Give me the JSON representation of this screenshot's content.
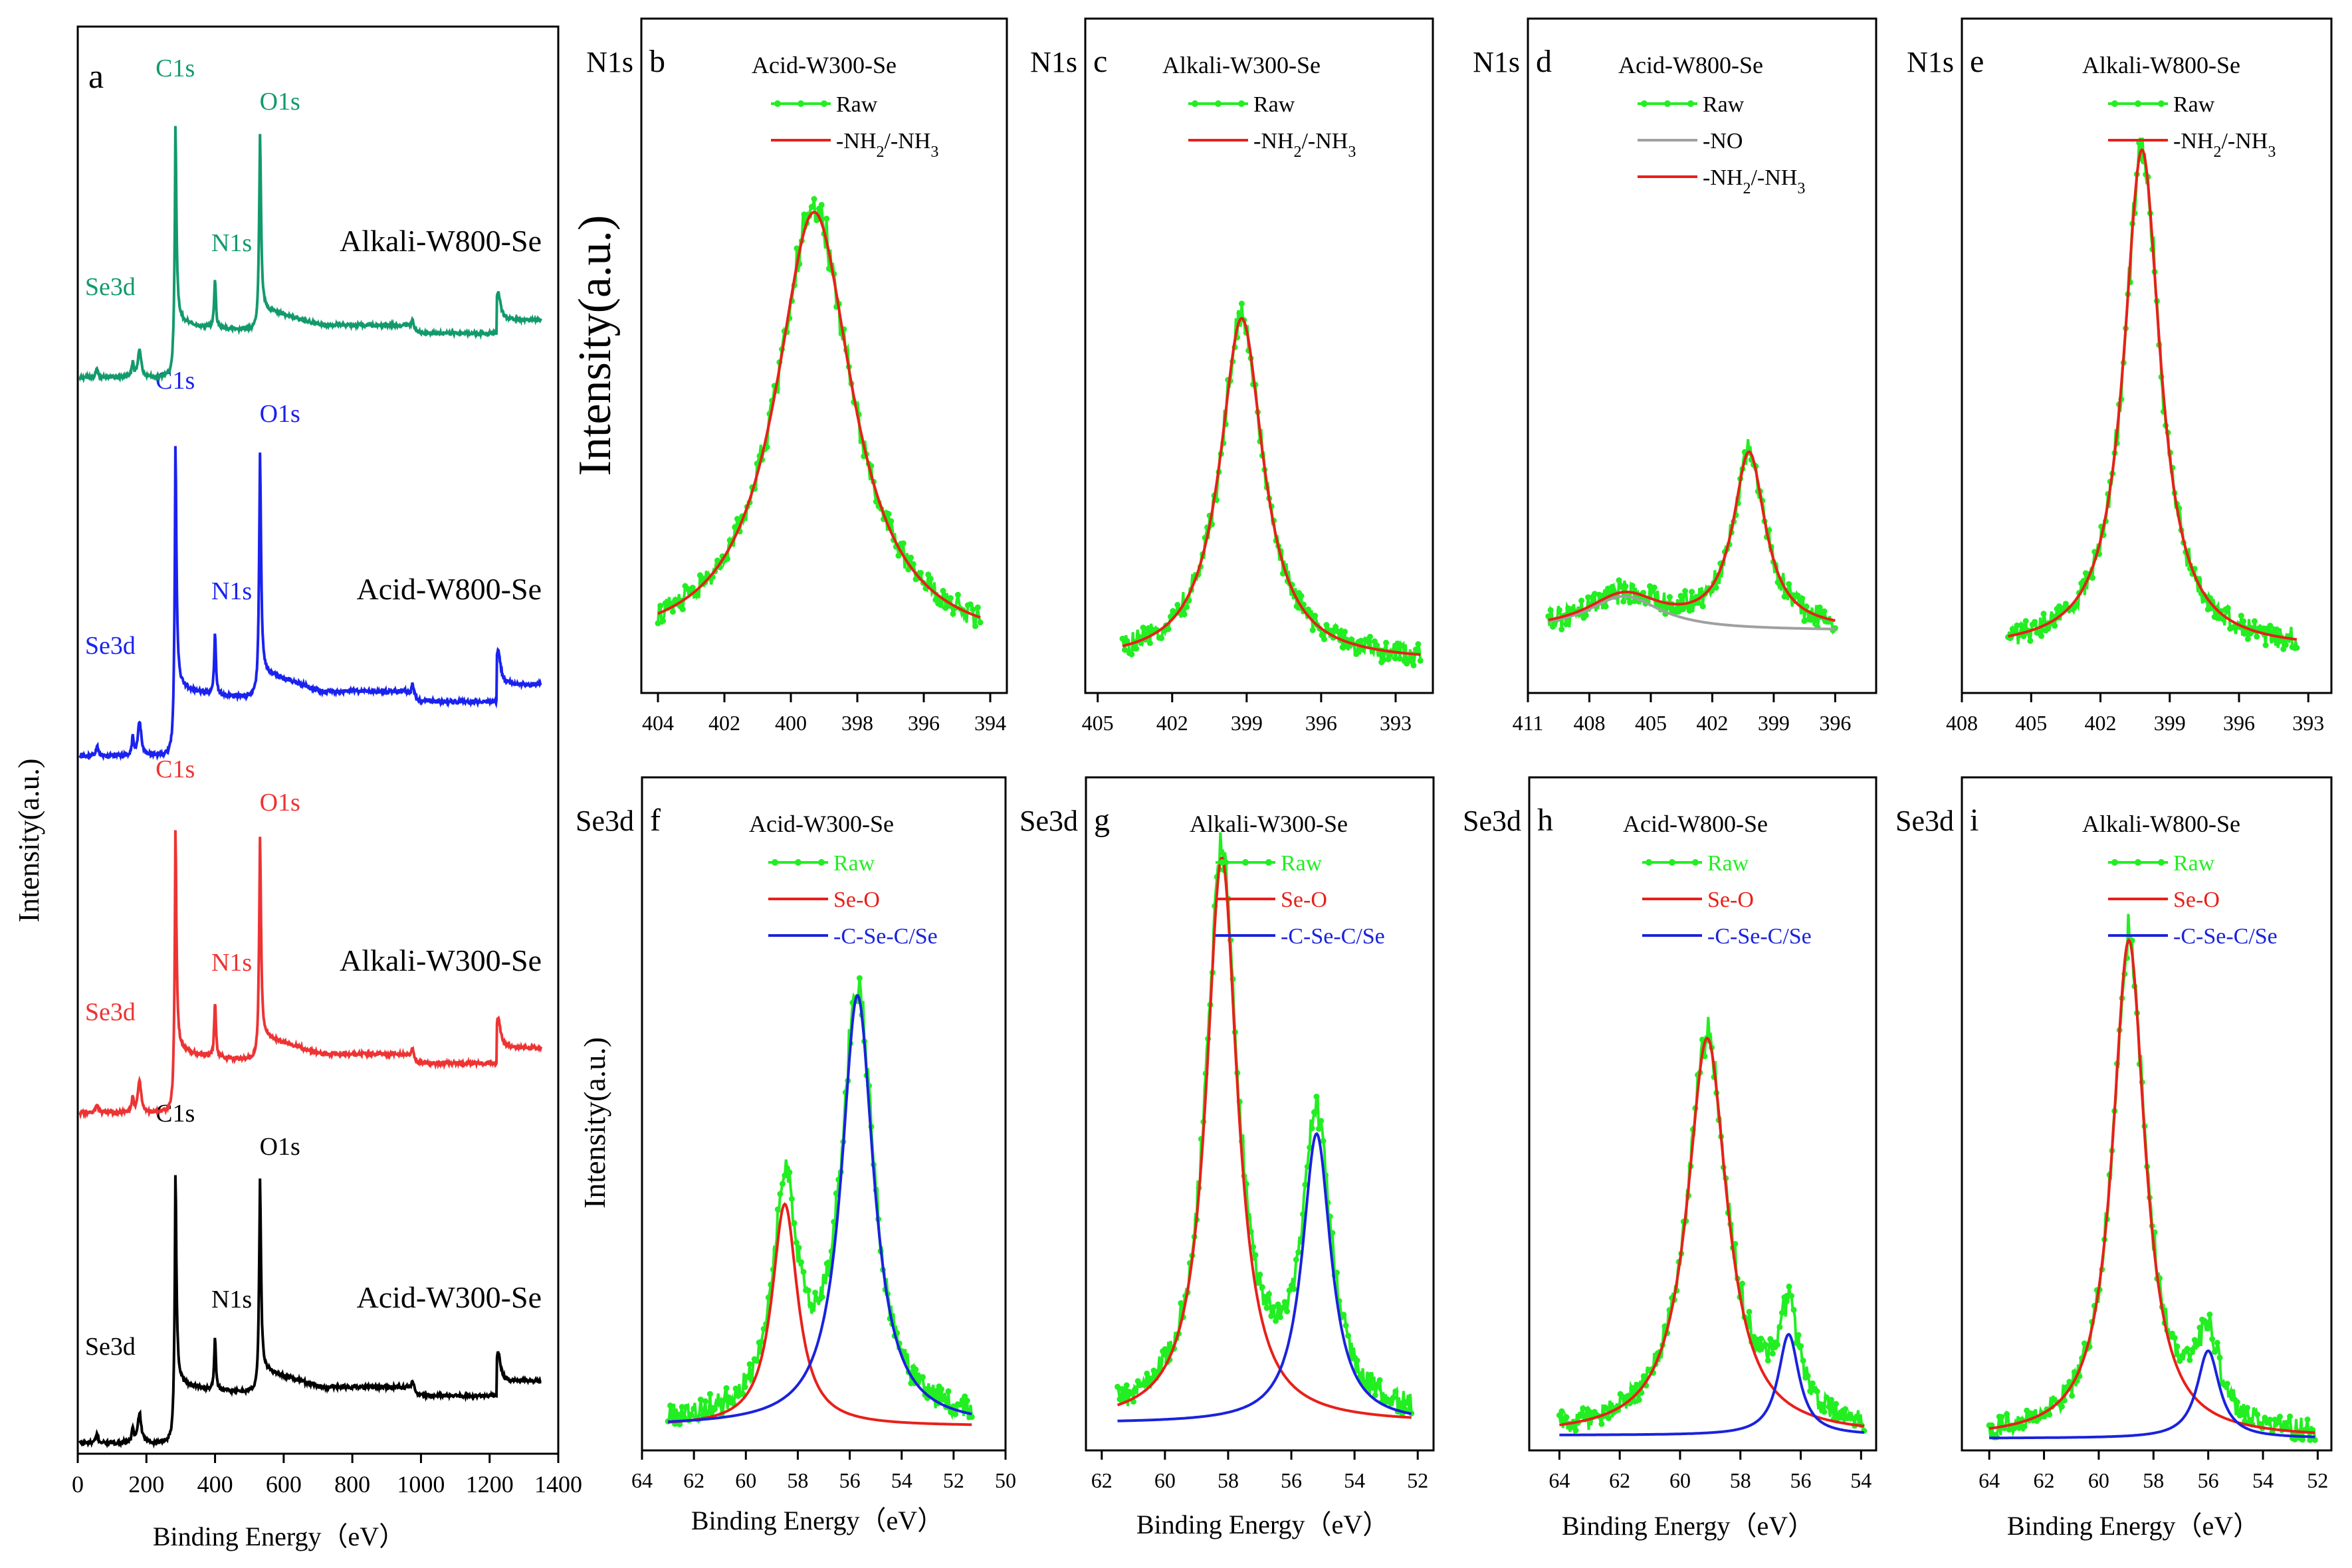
{
  "figure": {
    "y_axis_label_a": "Intensity(a.u.)",
    "y_axis_label_n1s": "Intensity(a.u.)",
    "y_axis_label_se3d": "Intensity(a.u.)",
    "x_axis_label": "Binding Energy（eV）"
  },
  "colors": {
    "raw": "#22ee22",
    "fit_red": "#e8201a",
    "fit_blue": "#1a22dd",
    "fit_gray": "#a0a0a0",
    "survey_green": "#129a6b",
    "survey_blue": "#1a22ee",
    "survey_red": "#ee3333",
    "survey_black": "#000000"
  },
  "chart_data": [
    {
      "id": "a",
      "panel_label": "a",
      "type": "line",
      "xlabel": "Binding Energy（eV）",
      "ylabel": "Intensity(a.u.)",
      "xlim": [
        0,
        1400
      ],
      "xticks": [
        "0",
        "200",
        "400",
        "600",
        "800",
        "1000",
        "1200",
        "1400"
      ],
      "series": [
        {
          "name": "Acid-W300-Se",
          "color": "#000000",
          "offset": 0,
          "peaks": [
            {
              "label": "Se3d",
              "x": 56
            },
            {
              "label": "C1s",
              "x": 284
            },
            {
              "label": "N1s",
              "x": 400
            },
            {
              "label": "O1s",
              "x": 531
            }
          ]
        },
        {
          "name": "Alkali-W300-Se",
          "color": "#ee3333",
          "offset": 1,
          "peaks": [
            {
              "label": "Se3d",
              "x": 56
            },
            {
              "label": "C1s",
              "x": 284
            },
            {
              "label": "N1s",
              "x": 400
            },
            {
              "label": "O1s",
              "x": 531
            }
          ]
        },
        {
          "name": "Acid-W800-Se",
          "color": "#1a22ee",
          "offset": 2,
          "peaks": [
            {
              "label": "Se3d",
              "x": 56
            },
            {
              "label": "C1s",
              "x": 284
            },
            {
              "label": "N1s",
              "x": 400
            },
            {
              "label": "O1s",
              "x": 531
            }
          ]
        },
        {
          "name": "Alkali-W800-Se",
          "color": "#129a6b",
          "offset": 3,
          "peaks": [
            {
              "label": "Se3d",
              "x": 56
            },
            {
              "label": "C1s",
              "x": 284
            },
            {
              "label": "N1s",
              "x": 400
            },
            {
              "label": "O1s",
              "x": 531
            }
          ]
        }
      ]
    },
    {
      "id": "b",
      "panel_label": "b",
      "element": "N1s",
      "sample": "Acid-W300-Se",
      "type": "line",
      "xlim": [
        404.5,
        393.5
      ],
      "xticks": [
        "404",
        "402",
        "400",
        "398",
        "396",
        "394"
      ],
      "xtick_values": [
        404,
        402,
        400,
        398,
        396,
        394
      ],
      "raw_range": [
        404,
        394.3
      ],
      "ylim": [
        0,
        1.08
      ],
      "baseline": 0.07,
      "components": [
        {
          "name": "-NH2/-NH3",
          "center": 399.3,
          "height": 0.7,
          "width": 1.4,
          "color": "#e8201a"
        }
      ],
      "legend": [
        {
          "label": "Raw",
          "type": "raw"
        },
        {
          "label": "-NH",
          "sub": "2",
          "mid": "/-NH",
          "sub2": "3",
          "type": "red"
        }
      ]
    },
    {
      "id": "c",
      "panel_label": "c",
      "element": "N1s",
      "sample": "Alkali-W300-Se",
      "type": "line",
      "xlim": [
        405.5,
        391.5
      ],
      "xticks": [
        "405",
        "402",
        "399",
        "396",
        "393"
      ],
      "xtick_values": [
        405,
        402,
        399,
        396,
        393
      ],
      "raw_range": [
        404,
        392
      ],
      "ylim": [
        0,
        1.08
      ],
      "baseline": 0.05,
      "components": [
        {
          "name": "-NH2/-NH3",
          "center": 399.2,
          "height": 0.55,
          "width": 1.05,
          "color": "#e8201a"
        }
      ],
      "legend": [
        {
          "label": "Raw",
          "type": "raw"
        },
        {
          "label": "-NH",
          "sub": "2",
          "mid": "/-NH",
          "sub2": "3",
          "type": "red"
        }
      ]
    },
    {
      "id": "d",
      "panel_label": "d",
      "element": "N1s",
      "sample": "Acid-W800-Se",
      "type": "line",
      "xlim": [
        411,
        394
      ],
      "xticks": [
        "411",
        "408",
        "405",
        "402",
        "399",
        "396"
      ],
      "xtick_values": [
        411,
        408,
        405,
        402,
        399,
        396
      ],
      "raw_range": [
        410,
        396
      ],
      "ylim": [
        0,
        1.08
      ],
      "baseline": 0.1,
      "components": [
        {
          "name": "-NO",
          "center": 406.3,
          "height": 0.055,
          "width": 2.2,
          "color": "#a0a0a0"
        },
        {
          "name": "-NH2/-NH3",
          "center": 400.2,
          "height": 0.28,
          "width": 0.95,
          "color": "#e8201a"
        }
      ],
      "legend": [
        {
          "label": "Raw",
          "type": "raw"
        },
        {
          "label": "-NO",
          "type": "gray"
        },
        {
          "label": "-NH",
          "sub": "2",
          "mid": "/-NH",
          "sub2": "3",
          "type": "red"
        }
      ]
    },
    {
      "id": "e",
      "panel_label": "e",
      "element": "N1s",
      "sample": "Alkali-W800-Se",
      "type": "line",
      "xlim": [
        408,
        392
      ],
      "xticks": [
        "408",
        "405",
        "402",
        "399",
        "396",
        "393"
      ],
      "xtick_values": [
        408,
        405,
        402,
        399,
        396,
        393
      ],
      "raw_range": [
        406,
        393.5
      ],
      "ylim": [
        0,
        1.08
      ],
      "baseline": 0.07,
      "components": [
        {
          "name": "-NH2/-NH3",
          "center": 400.2,
          "height": 0.8,
          "width": 0.95,
          "color": "#e8201a"
        }
      ],
      "legend": [
        {
          "label": "Raw",
          "type": "raw"
        },
        {
          "label": "-NH",
          "sub": "2",
          "mid": "/-NH",
          "sub2": "3",
          "type": "red"
        }
      ]
    },
    {
      "id": "f",
      "panel_label": "f",
      "element": "Se3d",
      "sample": "Acid-W300-Se",
      "type": "line",
      "xlim": [
        64,
        50
      ],
      "xticks": [
        "64",
        "62",
        "60",
        "58",
        "56",
        "54",
        "52",
        "50"
      ],
      "xtick_values": [
        64,
        62,
        60,
        58,
        56,
        54,
        52,
        50
      ],
      "raw_range": [
        63,
        51.3
      ],
      "ylim": [
        0,
        1.0
      ],
      "baseline": 0.04,
      "components": [
        {
          "name": "Se-O",
          "center": 58.5,
          "height": 0.33,
          "width": 0.6,
          "color": "#e8201a"
        },
        {
          "name": "-C-Se-C/Se",
          "center": 55.7,
          "height": 0.64,
          "width": 0.75,
          "color": "#1a22dd"
        }
      ],
      "legend": [
        {
          "label": "Raw",
          "type": "raw"
        },
        {
          "label": "Se-O",
          "type": "red"
        },
        {
          "label": "-C-Se-C/Se",
          "type": "blue"
        }
      ]
    },
    {
      "id": "g",
      "panel_label": "g",
      "element": "Se3d",
      "sample": "Alkali-W300-Se",
      "type": "line",
      "xlim": [
        62.5,
        51.5
      ],
      "xticks": [
        "62",
        "60",
        "58",
        "56",
        "54",
        "52"
      ],
      "xtick_values": [
        62,
        60,
        58,
        56,
        54,
        52
      ],
      "raw_range": [
        61.5,
        52.2
      ],
      "ylim": [
        0,
        1.0
      ],
      "baseline": 0.045,
      "components": [
        {
          "name": "Se-O",
          "center": 58.2,
          "height": 0.84,
          "width": 0.6,
          "color": "#e8201a"
        },
        {
          "name": "-C-Se-C/Se",
          "center": 55.2,
          "height": 0.43,
          "width": 0.55,
          "color": "#1a22dd"
        }
      ],
      "legend": [
        {
          "label": "Raw",
          "type": "raw"
        },
        {
          "label": "Se-O",
          "type": "red"
        },
        {
          "label": "-C-Se-C/Se",
          "type": "blue"
        }
      ]
    },
    {
      "id": "h",
      "panel_label": "h",
      "element": "Se3d",
      "sample": "Acid-W800-Se",
      "type": "line",
      "xlim": [
        65,
        53.5
      ],
      "xticks": [
        "64",
        "62",
        "60",
        "58",
        "56",
        "54"
      ],
      "xtick_values": [
        64,
        62,
        60,
        58,
        56,
        54
      ],
      "raw_range": [
        64,
        53.9
      ],
      "ylim": [
        0,
        1.0
      ],
      "baseline": 0.025,
      "components": [
        {
          "name": "Se-O",
          "center": 59.1,
          "height": 0.59,
          "width": 0.8,
          "color": "#e8201a"
        },
        {
          "name": "-C-Se-C/Se",
          "center": 56.4,
          "height": 0.15,
          "width": 0.42,
          "color": "#1a22dd"
        }
      ],
      "legend": [
        {
          "label": "Raw",
          "type": "raw"
        },
        {
          "label": "Se-O",
          "type": "red"
        },
        {
          "label": "-C-Se-C/Se",
          "type": "blue"
        }
      ]
    },
    {
      "id": "i",
      "panel_label": "i",
      "element": "Se3d",
      "sample": "Alkali-W800-Se",
      "type": "line",
      "xlim": [
        65,
        51.5
      ],
      "xticks": [
        "64",
        "62",
        "60",
        "58",
        "56",
        "54",
        "52"
      ],
      "xtick_values": [
        64,
        62,
        60,
        58,
        56,
        54,
        52
      ],
      "raw_range": [
        64,
        52.1
      ],
      "ylim": [
        0,
        1.0
      ],
      "baseline": 0.02,
      "components": [
        {
          "name": "Se-O",
          "center": 58.9,
          "height": 0.74,
          "width": 0.72,
          "color": "#e8201a"
        },
        {
          "name": "-C-Se-C/Se",
          "center": 56.0,
          "height": 0.13,
          "width": 0.5,
          "color": "#1a22dd"
        }
      ],
      "legend": [
        {
          "label": "Raw",
          "type": "raw"
        },
        {
          "label": "Se-O",
          "type": "red"
        },
        {
          "label": "-C-Se-C/Se",
          "type": "blue"
        }
      ]
    }
  ]
}
